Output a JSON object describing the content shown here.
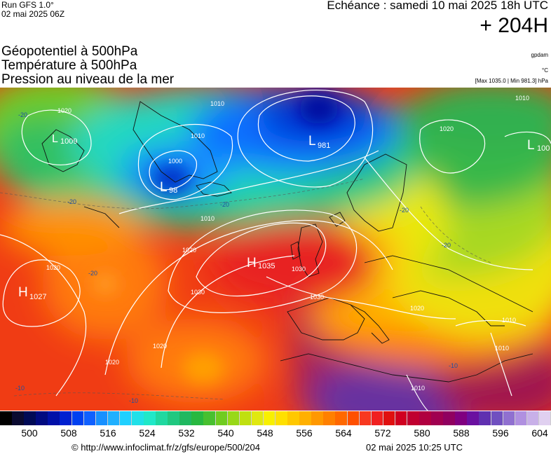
{
  "header": {
    "run": "Run GFS 1.0°",
    "run_time": "02 mai 2025 06Z",
    "valid_time": "Echéance : samedi 10 mai 2025 18h UTC",
    "lead": "+ 204H",
    "titles": [
      "Géopotentiel à 500hPa",
      "Température à 500hPa",
      "Pression au niveau de la mer"
    ],
    "units_gp": "gpdam",
    "units_temp": "°C",
    "pressure_range": "[Max 1035.0 | Min 981.3] hPa"
  },
  "pressure_centers": [
    {
      "type": "H",
      "value": "1035"
    },
    {
      "type": "H",
      "value": "1027"
    },
    {
      "type": "L",
      "value": "1009"
    },
    {
      "type": "L",
      "value": "981"
    },
    {
      "type": "L",
      "value": "98"
    },
    {
      "type": "L",
      "value": "100"
    }
  ],
  "isobar_labels": [
    "1020",
    "1010",
    "1010",
    "1000",
    "1010",
    "1020",
    "1030",
    "1030",
    "1020",
    "1020",
    "1020",
    "1030",
    "1020",
    "1010",
    "1010",
    "1010",
    "1020",
    "1010"
  ],
  "temp_labels": [
    "-20",
    "-20",
    "-20",
    "-20",
    "-20",
    "-20",
    "-10",
    "-10",
    "-10"
  ],
  "colorbar": {
    "labels": [
      "500",
      "508",
      "516",
      "524",
      "532",
      "540",
      "548",
      "556",
      "564",
      "572",
      "580",
      "588",
      "596",
      "604"
    ],
    "colors": [
      "#000000",
      "#0a0a30",
      "#000a55",
      "#000a80",
      "#0010a8",
      "#0020d0",
      "#0040f0",
      "#1060ff",
      "#1890ff",
      "#20b0ff",
      "#20d0ff",
      "#20e0e8",
      "#20e8c8",
      "#20d8a0",
      "#20c880",
      "#20b860",
      "#28b840",
      "#48c030",
      "#70cc20",
      "#98d818",
      "#c0e010",
      "#e0e810",
      "#f8f000",
      "#ffe000",
      "#ffc800",
      "#ffb000",
      "#ff9800",
      "#ff8000",
      "#ff6800",
      "#ff5000",
      "#f83820",
      "#f02020",
      "#e01010",
      "#d00020",
      "#c00030",
      "#b00040",
      "#a00050",
      "#900060",
      "#800080",
      "#6a10a0",
      "#6030b0",
      "#7050c0",
      "#9070d0",
      "#b090e0",
      "#c8b0e8",
      "#e0d0f0"
    ]
  },
  "footer": {
    "url": "© http://www.infoclimat.fr/z/gfs/europe/500/204",
    "generated": "02 mai 2025 10:25 UTC"
  }
}
